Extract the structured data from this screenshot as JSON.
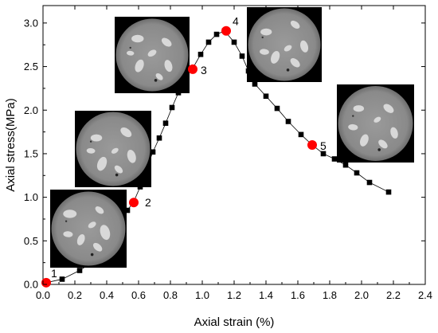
{
  "chart_data": {
    "type": "scatter",
    "xlabel": "Axial strain (%)",
    "ylabel": "Axial stress(MPa)",
    "xlim": [
      0.0,
      2.4
    ],
    "ylim": [
      0.0,
      3.2
    ],
    "xticks": [
      "0.0",
      "0.2",
      "0.4",
      "0.6",
      "0.8",
      "1.0",
      "1.2",
      "1.4",
      "1.6",
      "1.8",
      "2.0",
      "2.2",
      "2.4"
    ],
    "yticks": [
      "0.0",
      "0.5",
      "1.0",
      "1.5",
      "2.0",
      "2.5",
      "3.0"
    ],
    "grid": false,
    "series": [
      {
        "marker": "square",
        "color": "#000000",
        "points": [
          [
            0.02,
            0.02
          ],
          [
            0.12,
            0.06
          ],
          [
            0.23,
            0.16
          ],
          [
            0.33,
            0.28
          ],
          [
            0.37,
            0.38
          ],
          [
            0.41,
            0.5
          ],
          [
            0.45,
            0.61
          ],
          [
            0.49,
            0.73
          ],
          [
            0.53,
            0.85
          ],
          [
            0.57,
            0.95
          ],
          [
            0.61,
            1.12
          ],
          [
            0.65,
            1.33
          ],
          [
            0.69,
            1.52
          ],
          [
            0.73,
            1.68
          ],
          [
            0.77,
            1.85
          ],
          [
            0.81,
            2.03
          ],
          [
            0.85,
            2.2
          ],
          [
            0.89,
            2.37
          ],
          [
            0.94,
            2.48
          ],
          [
            0.99,
            2.64
          ],
          [
            1.04,
            2.78
          ],
          [
            1.09,
            2.87
          ],
          [
            1.14,
            2.91
          ],
          [
            1.2,
            2.78
          ],
          [
            1.25,
            2.62
          ],
          [
            1.29,
            2.45
          ],
          [
            1.33,
            2.3
          ],
          [
            1.4,
            2.16
          ],
          [
            1.47,
            2.02
          ],
          [
            1.54,
            1.87
          ],
          [
            1.62,
            1.72
          ],
          [
            1.69,
            1.6
          ],
          [
            1.76,
            1.5
          ],
          [
            1.83,
            1.44
          ],
          [
            1.9,
            1.37
          ],
          [
            1.97,
            1.28
          ],
          [
            2.05,
            1.17
          ],
          [
            2.17,
            1.06
          ]
        ]
      }
    ],
    "highlighted_points": [
      {
        "label": "1",
        "x": 0.02,
        "y": 0.02,
        "color": "#ff0000"
      },
      {
        "label": "2",
        "x": 0.57,
        "y": 0.94,
        "color": "#ff0000"
      },
      {
        "label": "3",
        "x": 0.94,
        "y": 2.47,
        "color": "#ff0000"
      },
      {
        "label": "4",
        "x": 1.15,
        "y": 2.91,
        "color": "#ff0000"
      },
      {
        "label": "5",
        "x": 1.69,
        "y": 1.6,
        "color": "#ff0000"
      }
    ],
    "inset_images": [
      {
        "description": "CT scan cross-section",
        "attached_to": "1"
      },
      {
        "description": "CT scan cross-section",
        "attached_to": "2"
      },
      {
        "description": "CT scan cross-section",
        "attached_to": "3"
      },
      {
        "description": "CT scan cross-section",
        "attached_to": "4"
      },
      {
        "description": "CT scan cross-section",
        "attached_to": "5"
      }
    ]
  }
}
